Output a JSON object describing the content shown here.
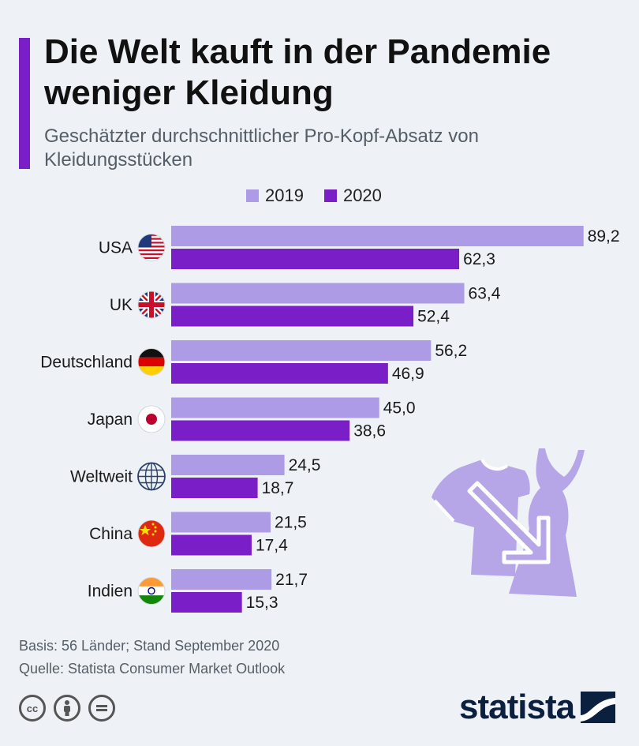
{
  "header": {
    "title": "Die Welt kauft in der Pandemie weniger Kleidung",
    "subtitle": "Geschätzter durchschnittlicher Pro-Kopf-Absatz von Kleidungsstücken"
  },
  "colors": {
    "accent": "#7a1fc7",
    "series_2019": "#ae9be6",
    "series_2020": "#7a1fc7",
    "illustration": "#b6a6e8"
  },
  "icons": [
    "flag-usa-icon",
    "flag-uk-icon",
    "flag-germany-icon",
    "flag-japan-icon",
    "globe-icon",
    "flag-china-icon",
    "flag-india-icon",
    "shirt-dress-down-arrow-illustration",
    "cc-icon",
    "attribution-icon",
    "no-derivatives-icon",
    "statista-logo"
  ],
  "chart_data": {
    "type": "bar",
    "orientation": "horizontal",
    "categories": [
      "USA",
      "UK",
      "Deutschland",
      "Japan",
      "Weltweit",
      "China",
      "Indien"
    ],
    "series": [
      {
        "name": "2019",
        "values": [
          89.2,
          63.4,
          56.2,
          45.0,
          24.5,
          21.5,
          21.7
        ],
        "labels": [
          "89,2",
          "63,4",
          "56,2",
          "45,0",
          "24,5",
          "21,5",
          "21,7"
        ]
      },
      {
        "name": "2020",
        "values": [
          62.3,
          52.4,
          46.9,
          38.6,
          18.7,
          17.4,
          15.3
        ],
        "labels": [
          "62,3",
          "52,4",
          "46,9",
          "38,6",
          "18,7",
          "17,4",
          "15,3"
        ]
      }
    ],
    "legend": "top",
    "grid": false
  },
  "footer": {
    "basis": "Basis: 56 Länder; Stand September 2020",
    "source": "Quelle: Statista Consumer Market Outlook",
    "logo_text": "statista"
  }
}
